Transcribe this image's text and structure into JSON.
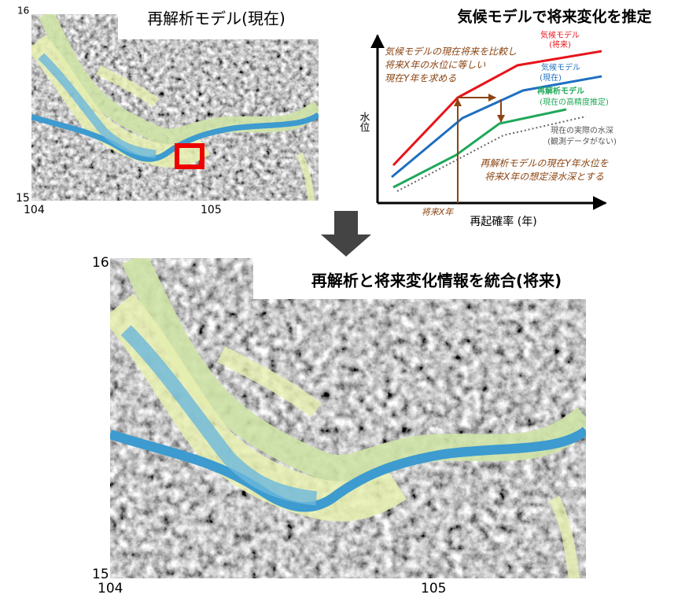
{
  "top_map": {
    "title": "再解析モデル(現在)",
    "y_ticks": [
      "16",
      "15"
    ],
    "x_ticks": [
      "104",
      "105"
    ]
  },
  "schematic": {
    "title": "気候モデルで将来変化を推定",
    "y_axis_label": "水位",
    "x_axis_label": "再起確率 (年)",
    "x_marker": "将来X年",
    "lines": [
      {
        "label": [
          "気候モデル",
          "(将来)"
        ]
      },
      {
        "label": [
          "気候モデル",
          "(現在)"
        ]
      },
      {
        "label": [
          "再解析モデル",
          "(現在の高精度推定)"
        ]
      },
      {
        "label": [
          "現在の実際の水深",
          "(観測データがない)"
        ]
      }
    ],
    "note_compare": [
      "気候モデルの現在将来を比較し",
      "将来X年の水位に等しい",
      "現在Y年を求める"
    ],
    "note_result": [
      "再解析モデルの現在Y年水位を",
      "将来X年の想定浸水深とする"
    ]
  },
  "bottom_map": {
    "title": "再解析と将来変化情報を統合(将来)",
    "y_ticks": [
      "16",
      "15"
    ],
    "x_ticks": [
      "104",
      "105"
    ]
  }
}
